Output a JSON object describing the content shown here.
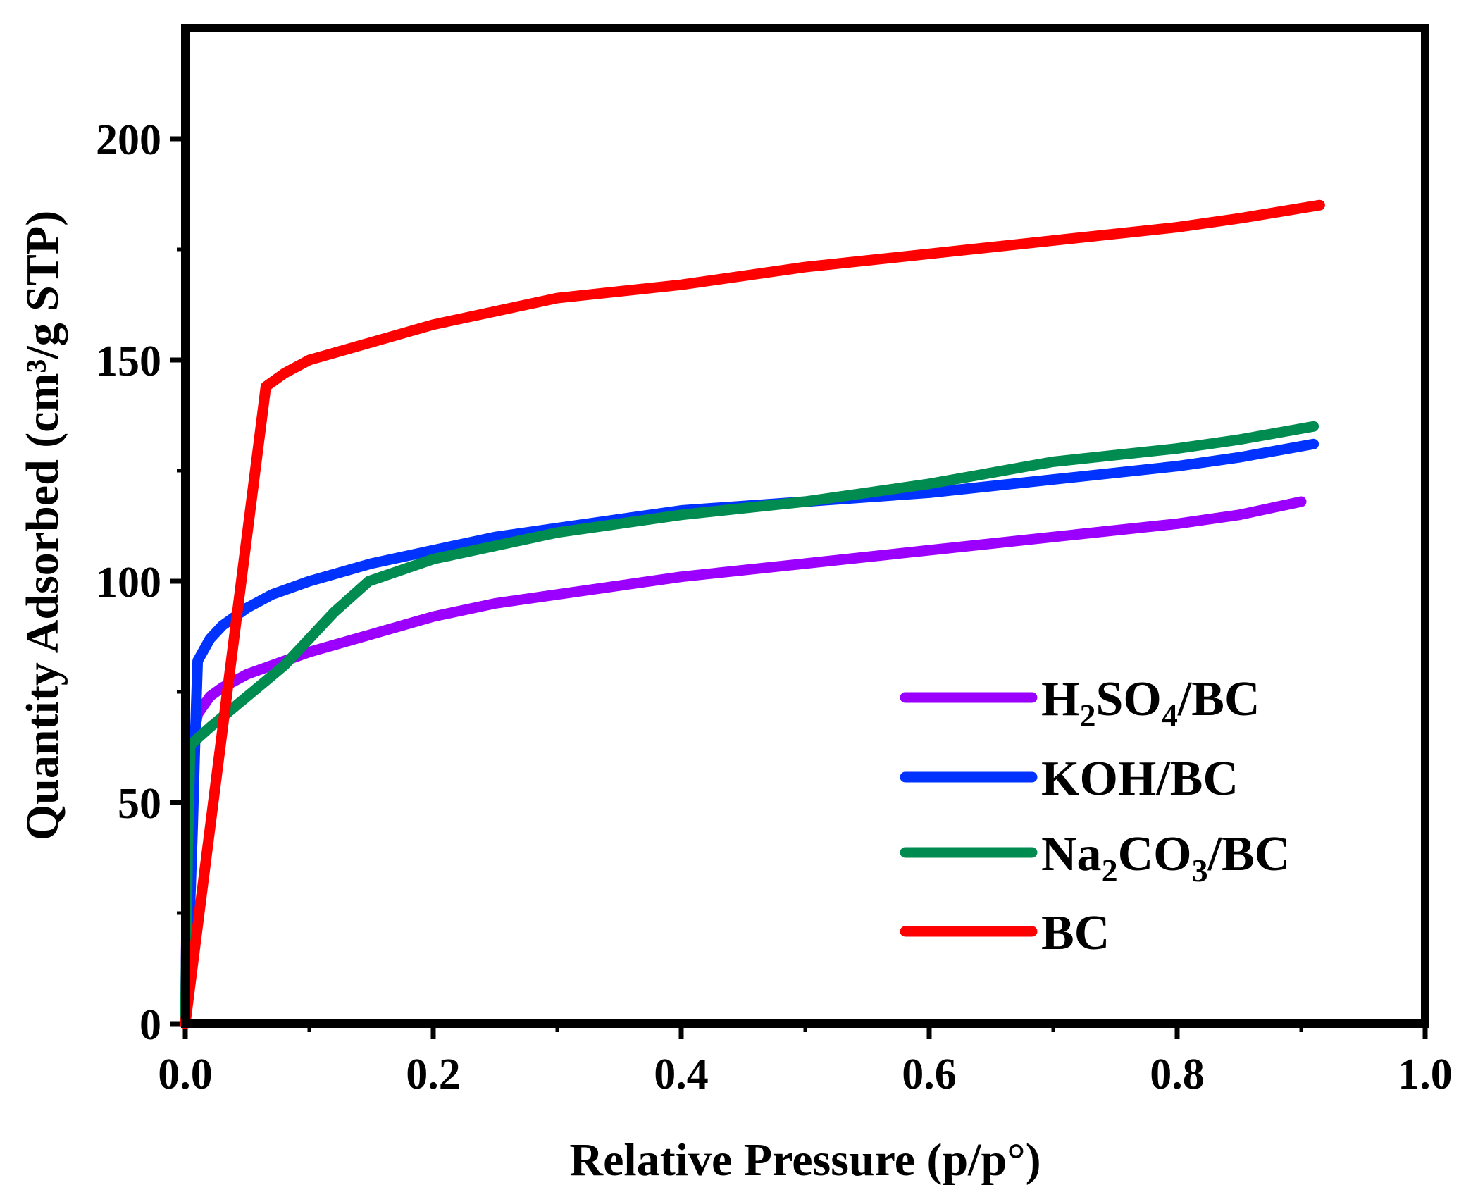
{
  "chart_data": {
    "type": "line",
    "title": "",
    "xlabel": "Relative Pressure (p/p°)",
    "ylabel": "Quantity Adsorbed (cm³/g STP)",
    "xlim": [
      0,
      1
    ],
    "ylim": [
      0,
      225
    ],
    "xticks": [
      0,
      0.2,
      0.4,
      0.6,
      0.8,
      1.0
    ],
    "xtick_labels": [
      "0.0",
      "0.2",
      "0.4",
      "0.6",
      "0.8",
      "1.0"
    ],
    "yticks": [
      0,
      50,
      100,
      150,
      200
    ],
    "ytick_labels": [
      "0",
      "50",
      "100",
      "150",
      "200"
    ],
    "grid": false,
    "legend_position": "lower-right",
    "series": [
      {
        "name": "H2SO4/BC",
        "legend_base": "H",
        "legend_parts": [
          {
            "text": "H",
            "sub": false
          },
          {
            "text": "2",
            "sub": true
          },
          {
            "text": "SO",
            "sub": false
          },
          {
            "text": "4",
            "sub": true
          },
          {
            "text": "/BC",
            "sub": false
          }
        ],
        "color": "#9b00ff",
        "x": [
          0.0,
          0.002,
          0.005,
          0.01,
          0.02,
          0.03,
          0.05,
          0.07,
          0.1,
          0.15,
          0.2,
          0.25,
          0.3,
          0.4,
          0.5,
          0.6,
          0.7,
          0.8,
          0.85,
          0.9
        ],
        "y": [
          0,
          45,
          62,
          70,
          74,
          76,
          79,
          81,
          84,
          88,
          92,
          95,
          97,
          101,
          104,
          107,
          110,
          113,
          115,
          118
        ]
      },
      {
        "name": "KOH/BC",
        "legend_parts": [
          {
            "text": "KOH/BC",
            "sub": false
          }
        ],
        "color": "#0033ff",
        "x": [
          0.0,
          0.003,
          0.006,
          0.008,
          0.01,
          0.02,
          0.03,
          0.05,
          0.07,
          0.1,
          0.15,
          0.2,
          0.25,
          0.3,
          0.4,
          0.5,
          0.6,
          0.7,
          0.8,
          0.85,
          0.91
        ],
        "y": [
          0,
          20,
          45,
          65,
          82,
          87,
          90,
          94,
          97,
          100,
          104,
          107,
          110,
          112,
          116,
          118,
          120,
          123,
          126,
          128,
          131
        ]
      },
      {
        "name": "Na2CO3/BC",
        "legend_parts": [
          {
            "text": "Na",
            "sub": false
          },
          {
            "text": "2",
            "sub": true
          },
          {
            "text": "CO",
            "sub": false
          },
          {
            "text": "3",
            "sub": true
          },
          {
            "text": "/BC",
            "sub": false
          }
        ],
        "color": "#008c50",
        "x": [
          0.0,
          0.002,
          0.004,
          0.02,
          0.05,
          0.08,
          0.1,
          0.12,
          0.148,
          0.2,
          0.25,
          0.3,
          0.4,
          0.5,
          0.6,
          0.7,
          0.8,
          0.85,
          0.91
        ],
        "y": [
          0,
          40,
          63,
          67,
          74,
          81,
          87,
          93,
          100,
          105,
          108,
          111,
          115,
          118,
          122,
          127,
          130,
          132,
          135
        ]
      },
      {
        "name": "BC",
        "legend_parts": [
          {
            "text": "BC",
            "sub": false
          }
        ],
        "color": "#ff0000",
        "x": [
          0.0,
          0.065,
          0.07,
          0.08,
          0.1,
          0.15,
          0.2,
          0.25,
          0.3,
          0.4,
          0.5,
          0.6,
          0.7,
          0.8,
          0.85,
          0.915
        ],
        "y": [
          0,
          144,
          145,
          147,
          150,
          154,
          158,
          161,
          164,
          167,
          171,
          174,
          177,
          180,
          182,
          185
        ]
      }
    ]
  }
}
